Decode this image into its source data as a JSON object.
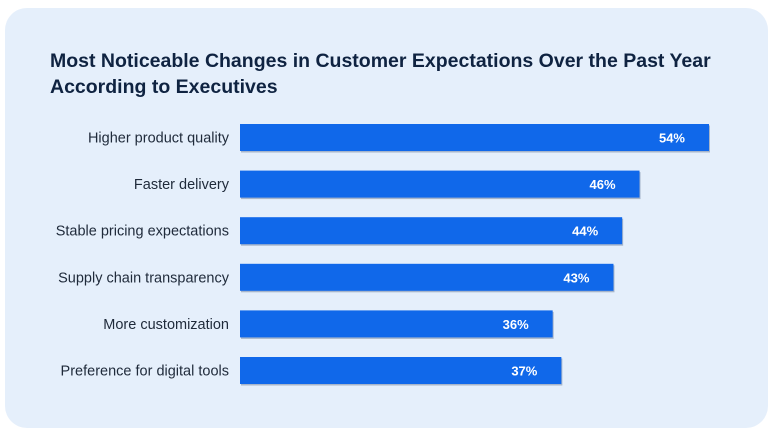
{
  "chart_data": {
    "type": "bar",
    "orientation": "horizontal",
    "title": "Most Noticeable Changes in Customer Expectations Over the Past Year According to Executives",
    "categories": [
      "Higher product quality",
      "Faster delivery",
      "Stable pricing expectations",
      "Supply chain transparency",
      "More customization",
      "Preference for digital tools"
    ],
    "values": [
      54,
      46,
      44,
      43,
      36,
      37
    ],
    "value_labels": [
      "54%",
      "46%",
      "44%",
      "43%",
      "36%",
      "37%"
    ],
    "xlabel": "",
    "ylabel": "",
    "xlim": [
      0,
      54
    ],
    "grid": false,
    "bar_color": "#1068ea",
    "background_color": "#e5effb"
  }
}
